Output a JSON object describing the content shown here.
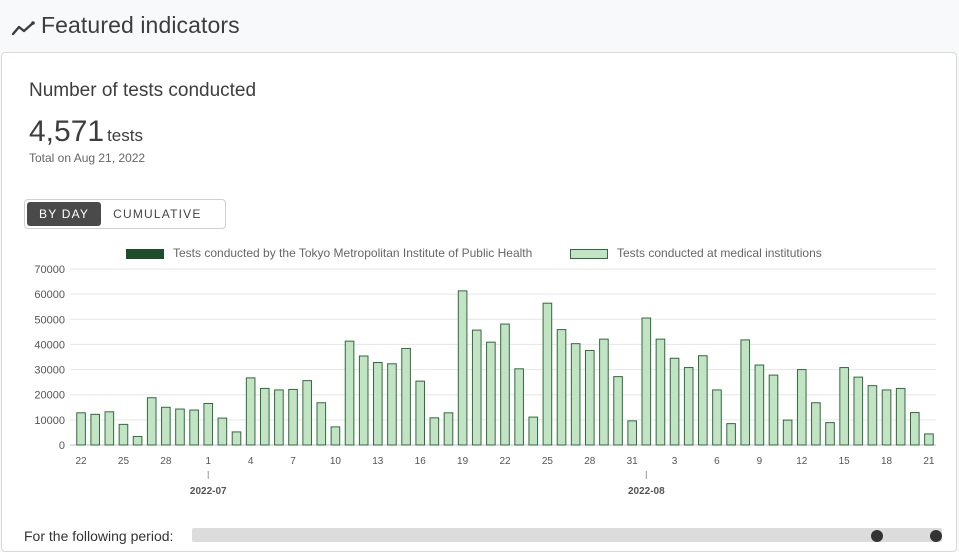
{
  "header": {
    "title": "Featured indicators",
    "icon": "trending-line-icon"
  },
  "card": {
    "title": "Number of tests conducted",
    "value": "4,571",
    "unit": "tests",
    "note": "Total on Aug 21, 2022",
    "toggle": {
      "by_day": "BY DAY",
      "cumulative": "CUMULATIVE",
      "active": "by_day"
    }
  },
  "period": {
    "label": "For the following period:",
    "range_start": 0.92,
    "range_end": 1.0
  },
  "colors": {
    "dark_series": "#1e4d2b",
    "light_series": "#c3e3c5",
    "light_border": "#2f6b3a"
  },
  "chart_data": {
    "type": "bar",
    "stacked": true,
    "legend_position": "top",
    "grid": true,
    "ylim": [
      0,
      70000
    ],
    "yticks": [
      0,
      10000,
      20000,
      30000,
      40000,
      50000,
      60000,
      70000
    ],
    "month_labels": [
      {
        "text": "2022-07",
        "index": 9
      },
      {
        "text": "2022-08",
        "index": 40
      }
    ],
    "categories": [
      "22",
      "23",
      "24",
      "25",
      "26",
      "27",
      "28",
      "29",
      "30",
      "1",
      "2",
      "3",
      "4",
      "5",
      "6",
      "7",
      "8",
      "9",
      "10",
      "11",
      "12",
      "13",
      "14",
      "15",
      "16",
      "17",
      "18",
      "19",
      "20",
      "21",
      "22",
      "23",
      "24",
      "25",
      "26",
      "27",
      "28",
      "29",
      "30",
      "31",
      "1",
      "2",
      "3",
      "4",
      "5",
      "6",
      "7",
      "8",
      "9",
      "10",
      "11",
      "12",
      "13",
      "14",
      "15",
      "16",
      "17",
      "18",
      "19",
      "20",
      "21"
    ],
    "tick_every": 3,
    "series": [
      {
        "name": "Tests conducted by the Tokyo Metropolitan Institute of Public Health",
        "values": [
          0,
          0,
          0,
          0,
          0,
          0,
          0,
          0,
          0,
          0,
          0,
          0,
          0,
          0,
          0,
          0,
          0,
          0,
          0,
          0,
          0,
          0,
          0,
          0,
          0,
          0,
          0,
          0,
          0,
          0,
          0,
          0,
          0,
          0,
          0,
          0,
          0,
          0,
          0,
          0,
          0,
          0,
          0,
          0,
          0,
          0,
          0,
          0,
          0,
          0,
          0,
          0,
          0,
          0,
          0,
          0,
          0,
          0,
          0,
          0,
          0
        ]
      },
      {
        "name": "Tests conducted at medical institutions",
        "values": [
          13000,
          12400,
          13400,
          8400,
          3600,
          19000,
          15200,
          14500,
          14100,
          16700,
          10900,
          5400,
          26900,
          22700,
          22100,
          22300,
          25800,
          17000,
          7400,
          41500,
          35600,
          33000,
          32500,
          38600,
          25600,
          11000,
          13000,
          61500,
          45900,
          41100,
          48300,
          30500,
          11300,
          56600,
          46100,
          40500,
          37800,
          42300,
          27400,
          9800,
          50700,
          42300,
          34700,
          31000,
          35700,
          22100,
          8700,
          42000,
          32000,
          28000,
          10100,
          30200,
          17000,
          9100,
          31000,
          27200,
          23800,
          22100,
          22700,
          13100,
          4600
        ]
      }
    ]
  }
}
